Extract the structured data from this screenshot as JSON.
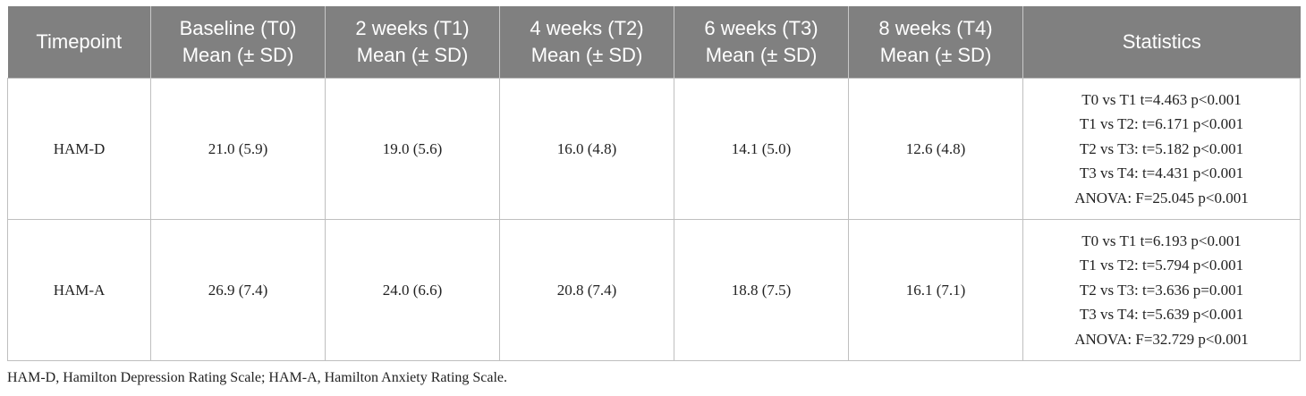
{
  "table": {
    "headers": [
      {
        "line1": "Timepoint",
        "line2": ""
      },
      {
        "line1": "Baseline (T0)",
        "line2": "Mean (± SD)"
      },
      {
        "line1": "2 weeks (T1)",
        "line2": "Mean (± SD)"
      },
      {
        "line1": "4 weeks (T2)",
        "line2": "Mean (± SD)"
      },
      {
        "line1": "6 weeks (T3)",
        "line2": "Mean (± SD)"
      },
      {
        "line1": "8 weeks (T4)",
        "line2": "Mean (± SD)"
      },
      {
        "line1": "Statistics",
        "line2": ""
      }
    ],
    "rows": [
      {
        "label": "HAM-D",
        "values": [
          "21.0 (5.9)",
          "19.0 (5.6)",
          "16.0 (4.8)",
          "14.1 (5.0)",
          "12.6 (4.8)"
        ],
        "stats": [
          "T0 vs T1 t=4.463 p<0.001",
          "T1 vs T2: t=6.171 p<0.001",
          "T2 vs T3: t=5.182 p<0.001",
          "T3 vs T4: t=4.431 p<0.001",
          "ANOVA: F=25.045 p<0.001"
        ]
      },
      {
        "label": "HAM-A",
        "values": [
          "26.9 (7.4)",
          "24.0 (6.6)",
          "20.8 (7.4)",
          "18.8 (7.5)",
          "16.1 (7.1)"
        ],
        "stats": [
          "T0 vs T1 t=6.193 p<0.001",
          "T1 vs T2: t=5.794 p<0.001",
          "T2 vs T3: t=3.636 p=0.001",
          "T3 vs T4: t=5.639 p<0.001",
          "ANOVA: F=32.729 p<0.001"
        ]
      }
    ]
  },
  "footnote": "HAM-D, Hamilton Depression Rating Scale; HAM-A, Hamilton Anxiety Rating Scale.",
  "colors": {
    "header_bg": "#808080",
    "header_text": "#ffffff",
    "body_text": "#222222",
    "grid": "#bfbfbf"
  }
}
